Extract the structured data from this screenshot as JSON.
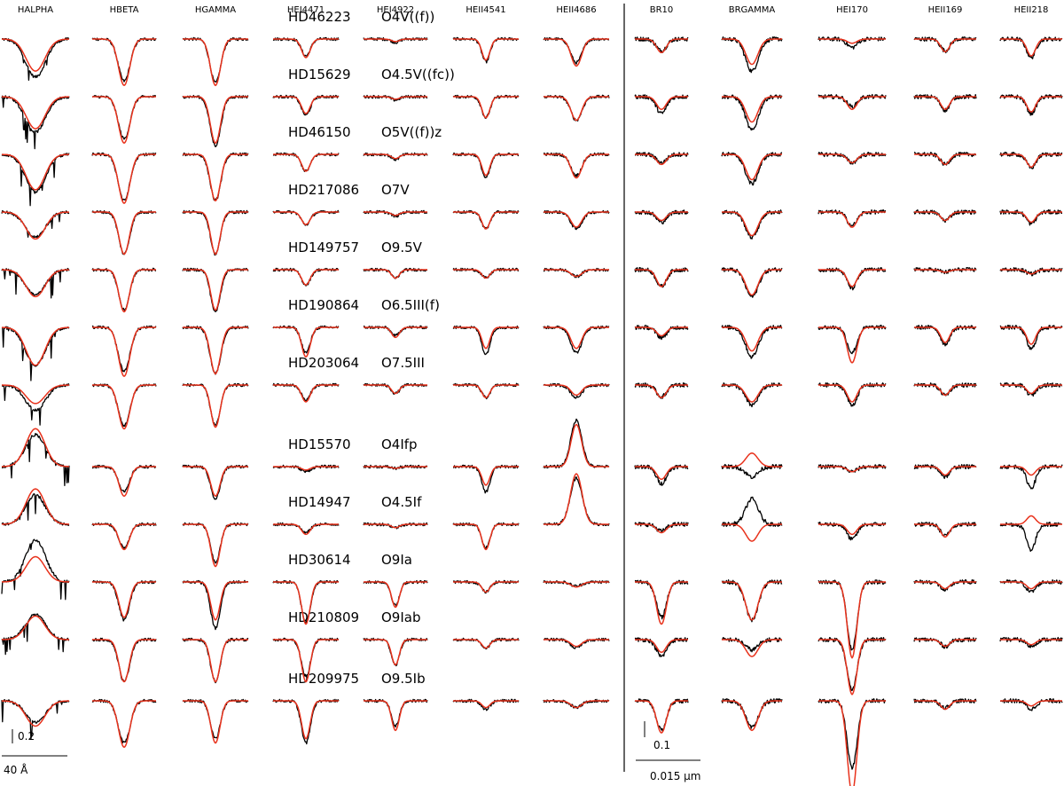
{
  "chart_data": {
    "type": "line",
    "colors": {
      "observed": "#000000",
      "model": "#e8321c"
    },
    "columns": [
      {
        "label": "HALPHA",
        "panel": "optical"
      },
      {
        "label": "HBETA",
        "panel": "optical"
      },
      {
        "label": "HGAMMA",
        "panel": "optical"
      },
      {
        "label": "HEI4471",
        "panel": "optical"
      },
      {
        "label": "HEI4922",
        "panel": "optical"
      },
      {
        "label": "HEII4541",
        "panel": "optical"
      },
      {
        "label": "HEII4686",
        "panel": "optical"
      },
      {
        "label": "BR10",
        "panel": "infrared"
      },
      {
        "label": "BRGAMMA",
        "panel": "infrared"
      },
      {
        "label": "HEI170",
        "panel": "infrared"
      },
      {
        "label": "HEII169",
        "panel": "infrared"
      },
      {
        "label": "HEII218",
        "panel": "infrared"
      }
    ],
    "stars": [
      {
        "name": "HD46223",
        "sptype": "O4V((f))",
        "model": [
          -0.38,
          -0.55,
          -0.55,
          -0.22,
          -0.03,
          -0.25,
          -0.32,
          -0.16,
          -0.3,
          -0.05,
          -0.15,
          -0.2
        ],
        "observed": [
          -0.45,
          -0.5,
          -0.52,
          -0.2,
          -0.04,
          -0.27,
          -0.28,
          -0.14,
          -0.38,
          -0.1,
          -0.14,
          -0.22
        ]
      },
      {
        "name": "HD15629",
        "sptype": "O4.5V((fc))",
        "model": [
          -0.38,
          -0.55,
          -0.55,
          -0.2,
          -0.03,
          -0.25,
          -0.28,
          -0.15,
          -0.3,
          -0.15,
          -0.15,
          -0.18
        ],
        "observed": [
          -0.42,
          -0.5,
          -0.58,
          -0.22,
          -0.04,
          -0.25,
          -0.28,
          -0.2,
          -0.4,
          -0.12,
          -0.16,
          -0.2
        ]
      },
      {
        "name": "HD46150",
        "sptype": "O5V((f))z",
        "model": [
          -0.42,
          -0.58,
          -0.55,
          -0.2,
          -0.05,
          -0.25,
          -0.28,
          -0.12,
          -0.3,
          -0.1,
          -0.12,
          -0.15
        ],
        "observed": [
          -0.45,
          -0.55,
          -0.55,
          -0.2,
          -0.06,
          -0.28,
          -0.25,
          -0.1,
          -0.35,
          -0.1,
          -0.12,
          -0.16
        ]
      },
      {
        "name": "HD217086",
        "sptype": "O7V",
        "model": [
          -0.32,
          -0.5,
          -0.5,
          -0.15,
          -0.04,
          -0.2,
          -0.18,
          -0.1,
          -0.28,
          -0.18,
          -0.1,
          -0.12
        ],
        "observed": [
          -0.3,
          -0.5,
          -0.5,
          -0.15,
          -0.05,
          -0.2,
          -0.2,
          -0.12,
          -0.3,
          -0.16,
          -0.1,
          -0.14
        ]
      },
      {
        "name": "HD149757",
        "sptype": "O9.5V",
        "model": [
          -0.32,
          -0.5,
          -0.48,
          -0.18,
          -0.1,
          -0.1,
          -0.08,
          -0.2,
          -0.3,
          -0.2,
          -0.03,
          -0.05
        ],
        "observed": [
          -0.3,
          -0.48,
          -0.5,
          -0.18,
          -0.1,
          -0.1,
          -0.08,
          -0.2,
          -0.32,
          -0.22,
          -0.03,
          -0.05
        ]
      },
      {
        "name": "HD190864",
        "sptype": "O6.5III(f)",
        "model": [
          -0.45,
          -0.58,
          -0.55,
          -0.35,
          -0.12,
          -0.25,
          -0.25,
          -0.1,
          -0.28,
          -0.42,
          -0.18,
          -0.2
        ],
        "observed": [
          -0.45,
          -0.52,
          -0.55,
          -0.3,
          -0.1,
          -0.32,
          -0.3,
          -0.12,
          -0.35,
          -0.3,
          -0.2,
          -0.26
        ]
      },
      {
        "name": "HD203064",
        "sptype": "O7.5III",
        "model": [
          -0.22,
          -0.52,
          -0.5,
          -0.2,
          -0.1,
          -0.15,
          -0.12,
          -0.15,
          -0.2,
          -0.2,
          -0.12,
          -0.1
        ],
        "observed": [
          -0.3,
          -0.48,
          -0.48,
          -0.18,
          -0.1,
          -0.15,
          -0.15,
          -0.14,
          -0.24,
          -0.24,
          -0.12,
          -0.12
        ]
      },
      {
        "name": "HD15570",
        "sptype": "O4Ifp",
        "model": [
          0.45,
          -0.35,
          -0.35,
          -0.04,
          -0.02,
          -0.22,
          0.5,
          -0.15,
          0.16,
          -0.06,
          -0.1,
          -0.1
        ],
        "observed": [
          0.38,
          -0.3,
          -0.38,
          -0.06,
          -0.02,
          -0.3,
          0.55,
          -0.2,
          -0.12,
          -0.06,
          -0.12,
          -0.25
        ]
      },
      {
        "name": "HD14947",
        "sptype": "O4.5If",
        "model": [
          0.42,
          -0.3,
          -0.5,
          -0.12,
          -0.04,
          -0.3,
          0.6,
          -0.1,
          -0.2,
          -0.12,
          -0.15,
          0.1
        ],
        "observed": [
          0.35,
          -0.28,
          -0.45,
          -0.1,
          -0.04,
          -0.28,
          0.55,
          -0.08,
          0.3,
          -0.18,
          -0.14,
          -0.3
        ]
      },
      {
        "name": "HD30614",
        "sptype": "O9Ia",
        "model": [
          0.3,
          -0.42,
          -0.45,
          -0.5,
          -0.3,
          -0.12,
          -0.06,
          -0.5,
          -0.45,
          -0.9,
          -0.08,
          -0.08
        ],
        "observed": [
          0.5,
          -0.45,
          -0.55,
          -0.48,
          -0.28,
          -0.12,
          -0.05,
          -0.42,
          -0.45,
          -0.8,
          -0.1,
          -0.12
        ]
      },
      {
        "name": "HD210809",
        "sptype": "O9Iab",
        "model": [
          0.28,
          -0.5,
          -0.5,
          -0.5,
          -0.3,
          -0.1,
          -0.08,
          -0.15,
          -0.2,
          -0.65,
          -0.08,
          -0.06
        ],
        "observed": [
          0.3,
          -0.5,
          -0.5,
          -0.45,
          -0.3,
          -0.1,
          -0.1,
          -0.2,
          -0.12,
          -0.6,
          -0.08,
          -0.08
        ]
      },
      {
        "name": "HD209975",
        "sptype": "O9.5Ib",
        "model": [
          -0.3,
          -0.55,
          -0.5,
          -0.45,
          -0.35,
          -0.08,
          -0.08,
          -0.38,
          -0.35,
          -1.1,
          -0.1,
          -0.06
        ],
        "observed": [
          -0.25,
          -0.5,
          -0.45,
          -0.5,
          -0.3,
          -0.1,
          -0.08,
          -0.35,
          -0.32,
          -0.8,
          -0.08,
          -0.1
        ]
      }
    ],
    "scale_bars": {
      "optical": {
        "vertical": "0.2",
        "horizontal": "40 Å"
      },
      "infrared": {
        "vertical": "0.1",
        "horizontal": "0.015 μm"
      }
    }
  }
}
